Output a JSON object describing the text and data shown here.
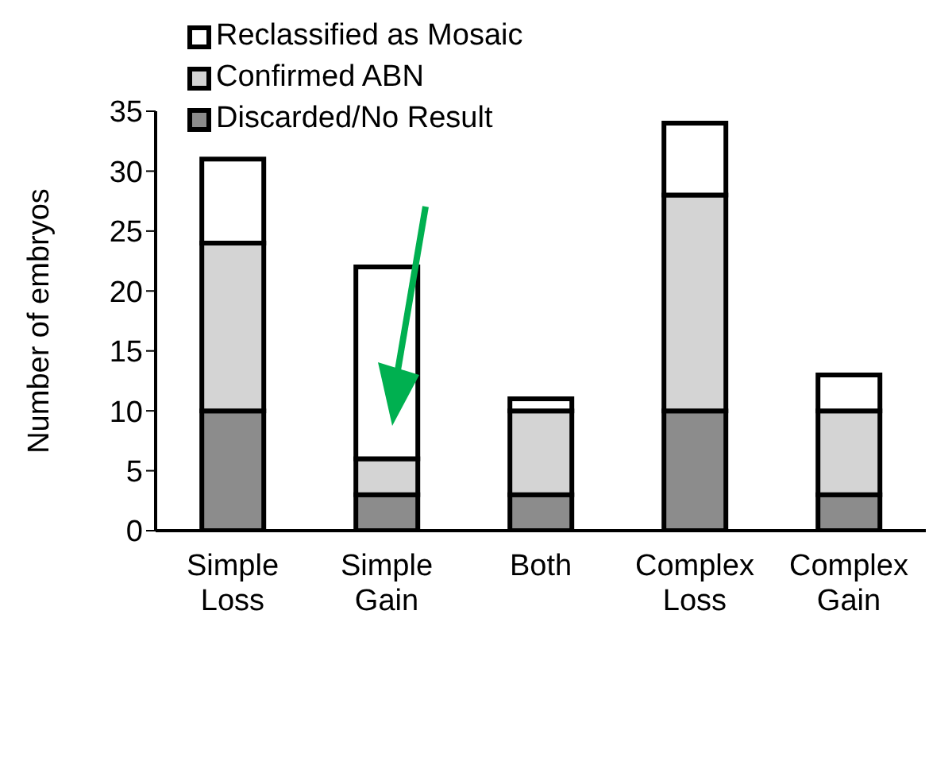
{
  "chart_data": {
    "type": "bar",
    "stacked": true,
    "ylabel": "Number of embryos",
    "categories": [
      "Simple Loss",
      "Simple Gain",
      "Both",
      "Complex Loss",
      "Complex Gain"
    ],
    "series": [
      {
        "name": "Discarded/No Result",
        "color": "#8c8c8c",
        "values": [
          10,
          3,
          3,
          10,
          3
        ]
      },
      {
        "name": "Confirmed ABN",
        "color": "#d4d4d4",
        "values": [
          14,
          3,
          7,
          18,
          7
        ]
      },
      {
        "name": "Reclassified as Mosaic",
        "color": "#ffffff",
        "values": [
          7,
          16,
          1,
          6,
          3
        ]
      }
    ],
    "ylim": [
      0,
      35
    ],
    "yticks": [
      0,
      5,
      10,
      15,
      20,
      25,
      30,
      35
    ],
    "grid": false,
    "legend": "top left"
  }
}
